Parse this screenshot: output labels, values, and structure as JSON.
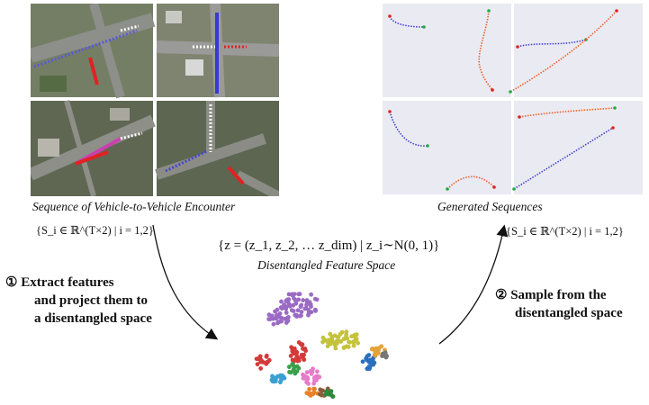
{
  "left_panel": {
    "caption": "Sequence of Vehicle-to-Vehicle Encounter",
    "set_notation": "{S_i ∈ ℝ^(T×2) | i = 1,2}"
  },
  "right_panel": {
    "caption": "Generated Sequences",
    "set_notation": "{S_i ∈ ℝ^(T×2) | i = 1,2}"
  },
  "center": {
    "formula": "{z = (z_1, z_2, … z_dim) | z_i∼N(0, 1)}",
    "caption": "Disentangled Feature Space"
  },
  "step1": {
    "line1": "① Extract features",
    "line2": "and project them to",
    "line3": "a disentangled space"
  },
  "step2": {
    "line1": "② Sample from the",
    "line2": "disentangled space"
  },
  "colors": {
    "trajectory_a": "#4444cc",
    "trajectory_b": "#e8642a",
    "start_marker": "#22aa44",
    "end_marker": "#dd2222",
    "plot_bg": "#eaeaf2"
  }
}
